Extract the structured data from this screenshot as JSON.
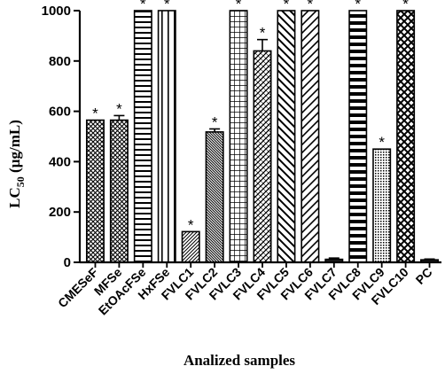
{
  "chart_data": {
    "type": "bar",
    "title": "",
    "xlabel": "Analized samples",
    "ylabel": "LC50 (µg/mL)",
    "ylabel_main": "LC",
    "ylabel_sub": "50",
    "ylabel_unit": " (µg/mL)",
    "ylim": [
      0,
      1000
    ],
    "yticks": [
      "0",
      "200",
      "400",
      "600",
      "800",
      "1000"
    ],
    "grid": false,
    "categories": [
      "CMESeF",
      "MFSe",
      "EtOAcFSe",
      "HxFSe",
      "FVLC1",
      "FVLC2",
      "FVLC3",
      "FVLC4",
      "FVLC5",
      "FVLC6",
      "FVLC7",
      "FVLC8",
      "FVLC9",
      "FVLC10",
      "PC"
    ],
    "values": [
      565,
      565,
      1000,
      1000,
      122,
      518,
      1000,
      840,
      1000,
      1000,
      12,
      1000,
      450,
      1000,
      10
    ],
    "errors": [
      0,
      18,
      0,
      0,
      0,
      12,
      0,
      45,
      0,
      0,
      5,
      0,
      0,
      0,
      3
    ],
    "significance": [
      "*",
      "*",
      "*",
      "*",
      "*",
      "*",
      "*",
      "*",
      "*",
      "*",
      "",
      "*",
      "*",
      "*",
      ""
    ],
    "patterns": [
      "cross-dots",
      "cross-dots",
      "horizontal",
      "vertical",
      "diag-thin",
      "diag-dense",
      "grid",
      "wave",
      "diag-wide",
      "diag-right",
      "solid-dark",
      "horizontal-thick",
      "dots",
      "crosshatch",
      "solid-dark"
    ]
  }
}
